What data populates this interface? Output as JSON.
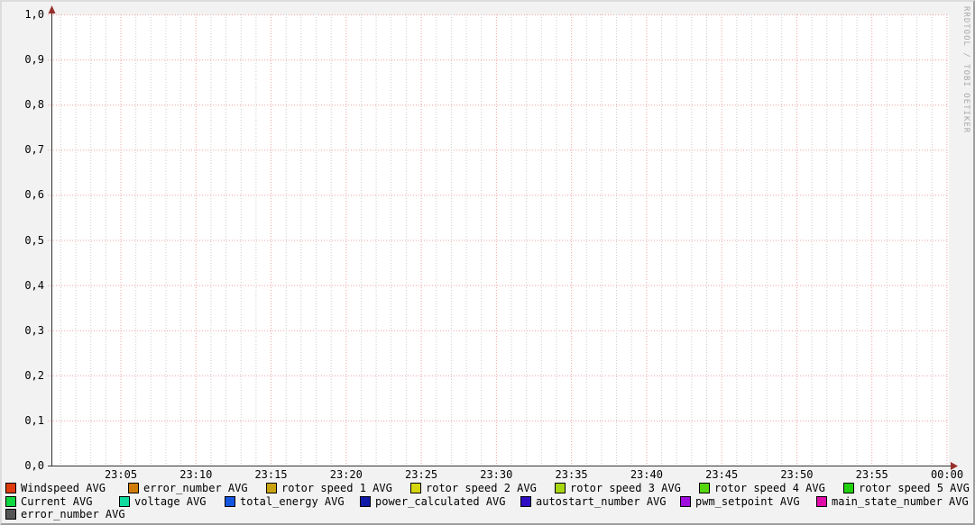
{
  "watermark": "RRDTOOL / TOBI OETIKER",
  "chart_data": {
    "type": "line",
    "title": "",
    "xlabel": "",
    "ylabel": "",
    "x_axis": {
      "start": "23:00",
      "end": "00:00",
      "ticks": [
        "23:05",
        "23:10",
        "23:15",
        "23:20",
        "23:25",
        "23:30",
        "23:35",
        "23:40",
        "23:45",
        "23:50",
        "23:55",
        "00:00"
      ],
      "minor_interval_minutes": 1,
      "major_interval_minutes": 5
    },
    "y_axis": {
      "ticks": [
        "1,0",
        "0,9",
        "0,8",
        "0,7",
        "0,6",
        "0,5",
        "0,4",
        "0,3",
        "0,2",
        "0,1",
        "0,0"
      ],
      "min": 0.0,
      "max": 1.0,
      "decimal_separator": ","
    },
    "ylim": [
      0,
      1
    ],
    "grid": {
      "on": true,
      "major_color": "#f0a3a3",
      "minor_color": "#cccccc",
      "axis_color": "#333333",
      "arrow_color": "#97302a",
      "plot_background": "#ffffff",
      "canvas_background": "#f2f2f2"
    },
    "legend_position": "bottom",
    "series": [
      {
        "name": "Windspeed AVG",
        "color": "#e03b0e",
        "values": []
      },
      {
        "name": "error_number AVG",
        "color": "#d07c0a",
        "values": []
      },
      {
        "name": "rotor speed 1 AVG",
        "color": "#c9a30d",
        "values": []
      },
      {
        "name": "rotor speed 2 AVG",
        "color": "#d6d60e",
        "values": []
      },
      {
        "name": "rotor speed 3 AVG",
        "color": "#a8d60e",
        "values": []
      },
      {
        "name": "rotor speed 4 AVG",
        "color": "#55d60e",
        "values": []
      },
      {
        "name": "rotor speed 5 AVG",
        "color": "#22d10e",
        "values": []
      },
      {
        "name": "Current AVG",
        "color": "#0fd840",
        "values": []
      },
      {
        "name": "voltage AVG",
        "color": "#10dca0",
        "values": []
      },
      {
        "name": "total_energy AVG",
        "color": "#1455e0",
        "values": []
      },
      {
        "name": "power_calculated AVG",
        "color": "#0e18a8",
        "values": []
      },
      {
        "name": "autostart_number AVG",
        "color": "#2f0cc4",
        "values": []
      },
      {
        "name": "pwm_setpoint AVG",
        "color": "#a00ce0",
        "values": []
      },
      {
        "name": "main_state_number AVG",
        "color": "#e00ca8",
        "values": []
      },
      {
        "name": "error_number AVG",
        "color": "#555555",
        "values": []
      }
    ]
  },
  "legend": {
    "rows": [
      [
        0,
        1,
        2,
        3,
        4,
        5,
        6
      ],
      [
        7,
        8,
        9,
        10,
        11,
        12,
        13
      ],
      [
        14
      ]
    ]
  }
}
